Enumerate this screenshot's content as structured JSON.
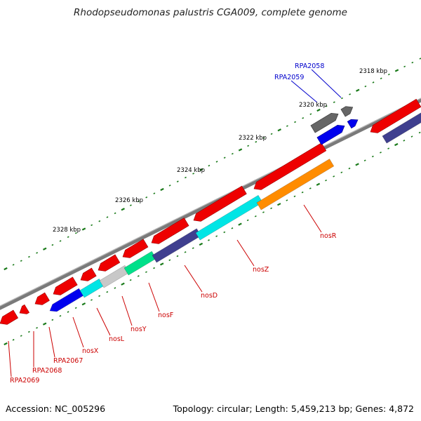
{
  "title": "Rhodopseudomonas palustris CGA009, complete genome",
  "footer": {
    "accession": "Accession: NC_005296",
    "summary": "Topology: circular; Length: 5,459,213 bp; Genes: 4,872"
  },
  "kbp_labels": [
    "2318 kbp",
    "2320 kbp",
    "2322 kbp",
    "2324 kbp",
    "2326 kbp",
    "2328 kbp"
  ],
  "gene_labels": {
    "red": [
      "nosR",
      "nosZ",
      "nosD",
      "nosF",
      "nosY",
      "nosL",
      "nosX",
      "RPA2067",
      "RPA2068",
      "RPA2069"
    ],
    "blue": [
      "RPA2058",
      "RPA2059"
    ]
  },
  "colors": {
    "backbone": "#7a7a7a",
    "cds_red": "#ee0000",
    "cds_blue": "#0000ee",
    "gray_gene": "#666666",
    "tick_green": "#1a7a1a",
    "label_red": "#cc0000",
    "label_blue": "#0000cc",
    "nosR": "#ff8c00",
    "nosZ": "#00e5e5",
    "nosD": "#3f3f8f",
    "nosF": "#00e08a",
    "nosY": "#c8c8c8",
    "nosL": "#00e5e5",
    "nosX": "#0000ee",
    "rpa2067": "#ee0000",
    "rpa2068": "#ee0000",
    "rpa2069": "#ee0000"
  }
}
